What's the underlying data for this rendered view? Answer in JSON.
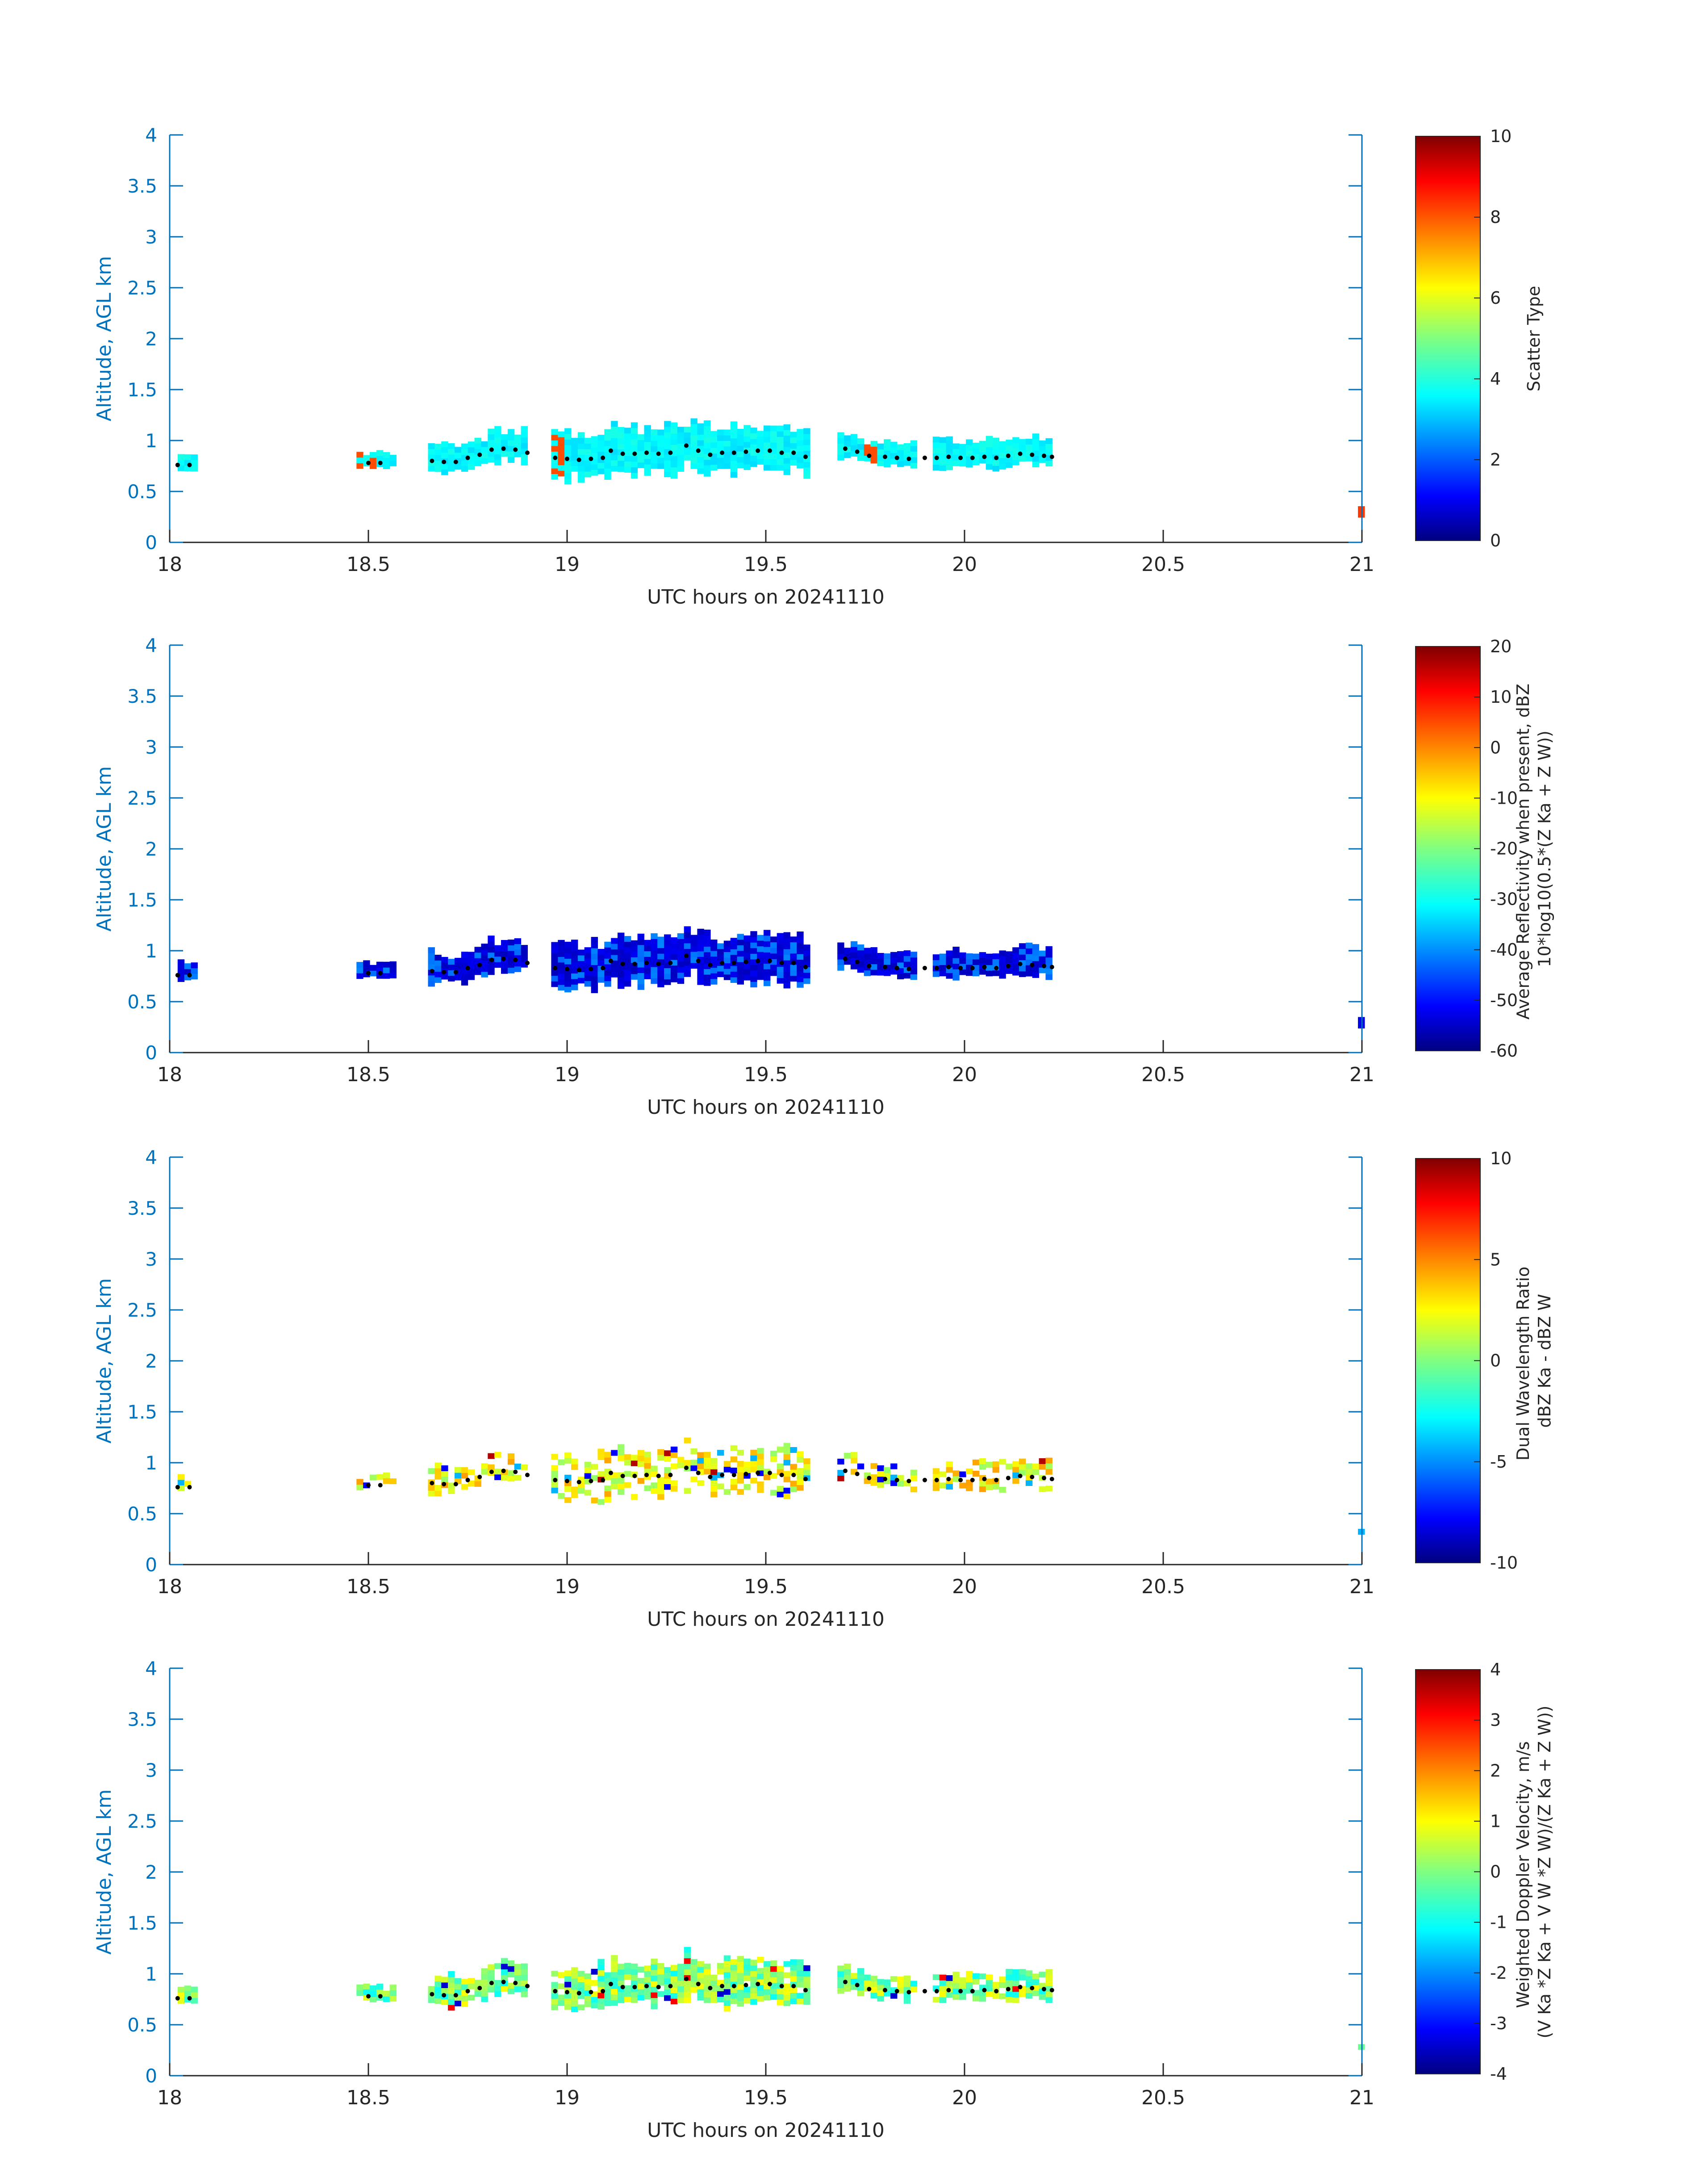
{
  "chart_data": [
    {
      "type": "heatmap",
      "panel": "scatter-type",
      "xlabel": "UTC hours on 20241110",
      "ylabel": "Altitude, AGL km",
      "xlim": [
        18,
        21
      ],
      "ylim": [
        0,
        4
      ],
      "x_ticks": [
        "18",
        "18.5",
        "19",
        "19.5",
        "20",
        "20.5",
        "21"
      ],
      "y_ticks": [
        "0",
        "0.5",
        "1",
        "1.5",
        "2",
        "2.5",
        "3",
        "3.5",
        "4"
      ],
      "colorbar": {
        "label_lines": [
          "Scatter Type"
        ],
        "range": [
          0,
          10
        ],
        "ticks": [
          "0",
          "2",
          "4",
          "6",
          "8",
          "10"
        ]
      }
    },
    {
      "type": "heatmap",
      "panel": "reflectivity",
      "xlabel": "UTC hours on 20241110",
      "ylabel": "Altitude, AGL km",
      "xlim": [
        18,
        21
      ],
      "ylim": [
        0,
        4
      ],
      "x_ticks": [
        "18",
        "18.5",
        "19",
        "19.5",
        "20",
        "20.5",
        "21"
      ],
      "y_ticks": [
        "0",
        "0.5",
        "1",
        "1.5",
        "2",
        "2.5",
        "3",
        "3.5",
        "4"
      ],
      "colorbar": {
        "label_lines": [
          "Average Reflectivity when present, dBZ",
          "10*log10(0.5*(Z Ka + Z W))"
        ],
        "range": [
          -60,
          20
        ],
        "ticks": [
          "-60",
          "-50",
          "-40",
          "-30",
          "-20",
          "-10",
          "0",
          "10",
          "20"
        ]
      }
    },
    {
      "type": "heatmap",
      "panel": "dual-wavelength-ratio",
      "xlabel": "UTC hours on 20241110",
      "ylabel": "Altitude, AGL km",
      "xlim": [
        18,
        21
      ],
      "ylim": [
        0,
        4
      ],
      "x_ticks": [
        "18",
        "18.5",
        "19",
        "19.5",
        "20",
        "20.5",
        "21"
      ],
      "y_ticks": [
        "0",
        "0.5",
        "1",
        "1.5",
        "2",
        "2.5",
        "3",
        "3.5",
        "4"
      ],
      "colorbar": {
        "label_lines": [
          "Dual Wavelength Ratio",
          "dBZ Ka - dBZ W"
        ],
        "range": [
          -10,
          10
        ],
        "ticks": [
          "-10",
          "-5",
          "0",
          "5",
          "10"
        ]
      }
    },
    {
      "type": "heatmap",
      "panel": "doppler-velocity",
      "xlabel": "UTC hours on 20241110",
      "ylabel": "Altitude, AGL km",
      "xlim": [
        18,
        21
      ],
      "ylim": [
        0,
        4
      ],
      "x_ticks": [
        "18",
        "18.5",
        "19",
        "19.5",
        "20",
        "20.5",
        "21"
      ],
      "y_ticks": [
        "0",
        "0.5",
        "1",
        "1.5",
        "2",
        "2.5",
        "3",
        "3.5",
        "4"
      ],
      "colorbar": {
        "label_lines": [
          "Weighted Doppler Velocity, m/s",
          "(V Ka *Z Ka + V W *Z W)/(Z Ka + Z W))"
        ],
        "range": [
          -4,
          4
        ],
        "ticks": [
          "-4",
          "-3",
          "-2",
          "-1",
          "0",
          "1",
          "2",
          "3",
          "4"
        ]
      }
    }
  ],
  "cloud_base": {
    "description": "black dotted line over each panel",
    "points": [
      [
        18.02,
        0.76
      ],
      [
        18.05,
        0.76
      ],
      [
        18.5,
        0.78
      ],
      [
        18.53,
        0.78
      ],
      [
        18.66,
        0.8
      ],
      [
        18.69,
        0.79
      ],
      [
        18.72,
        0.79
      ],
      [
        18.75,
        0.83
      ],
      [
        18.78,
        0.86
      ],
      [
        18.81,
        0.91
      ],
      [
        18.84,
        0.92
      ],
      [
        18.87,
        0.91
      ],
      [
        18.9,
        0.88
      ],
      [
        18.97,
        0.83
      ],
      [
        19.0,
        0.82
      ],
      [
        19.03,
        0.81
      ],
      [
        19.06,
        0.82
      ],
      [
        19.09,
        0.83
      ],
      [
        19.11,
        0.9
      ],
      [
        19.14,
        0.87
      ],
      [
        19.17,
        0.87
      ],
      [
        19.2,
        0.88
      ],
      [
        19.23,
        0.87
      ],
      [
        19.26,
        0.88
      ],
      [
        19.3,
        0.95
      ],
      [
        19.33,
        0.9
      ],
      [
        19.36,
        0.86
      ],
      [
        19.39,
        0.88
      ],
      [
        19.42,
        0.88
      ],
      [
        19.45,
        0.89
      ],
      [
        19.48,
        0.9
      ],
      [
        19.51,
        0.9
      ],
      [
        19.54,
        0.88
      ],
      [
        19.57,
        0.88
      ],
      [
        19.6,
        0.84
      ],
      [
        19.7,
        0.92
      ],
      [
        19.73,
        0.89
      ],
      [
        19.76,
        0.85
      ],
      [
        19.8,
        0.84
      ],
      [
        19.83,
        0.83
      ],
      [
        19.86,
        0.82
      ],
      [
        19.9,
        0.83
      ],
      [
        19.93,
        0.83
      ],
      [
        19.96,
        0.84
      ],
      [
        19.99,
        0.83
      ],
      [
        20.02,
        0.83
      ],
      [
        20.05,
        0.84
      ],
      [
        20.08,
        0.83
      ],
      [
        20.11,
        0.85
      ],
      [
        20.14,
        0.87
      ],
      [
        20.17,
        0.86
      ],
      [
        20.2,
        0.85
      ],
      [
        20.22,
        0.84
      ]
    ]
  },
  "segments": [
    [
      18.02,
      18.07,
      0.7,
      0.88
    ],
    [
      18.47,
      18.57,
      0.68,
      0.84
    ],
    [
      18.65,
      18.9,
      0.72,
      1.05
    ],
    [
      18.96,
      19.6,
      0.62,
      1.14
    ],
    [
      19.68,
      19.88,
      0.72,
      0.98
    ],
    [
      19.92,
      20.22,
      0.66,
      0.96
    ],
    [
      20.99,
      21.0,
      0.24,
      0.32
    ]
  ]
}
